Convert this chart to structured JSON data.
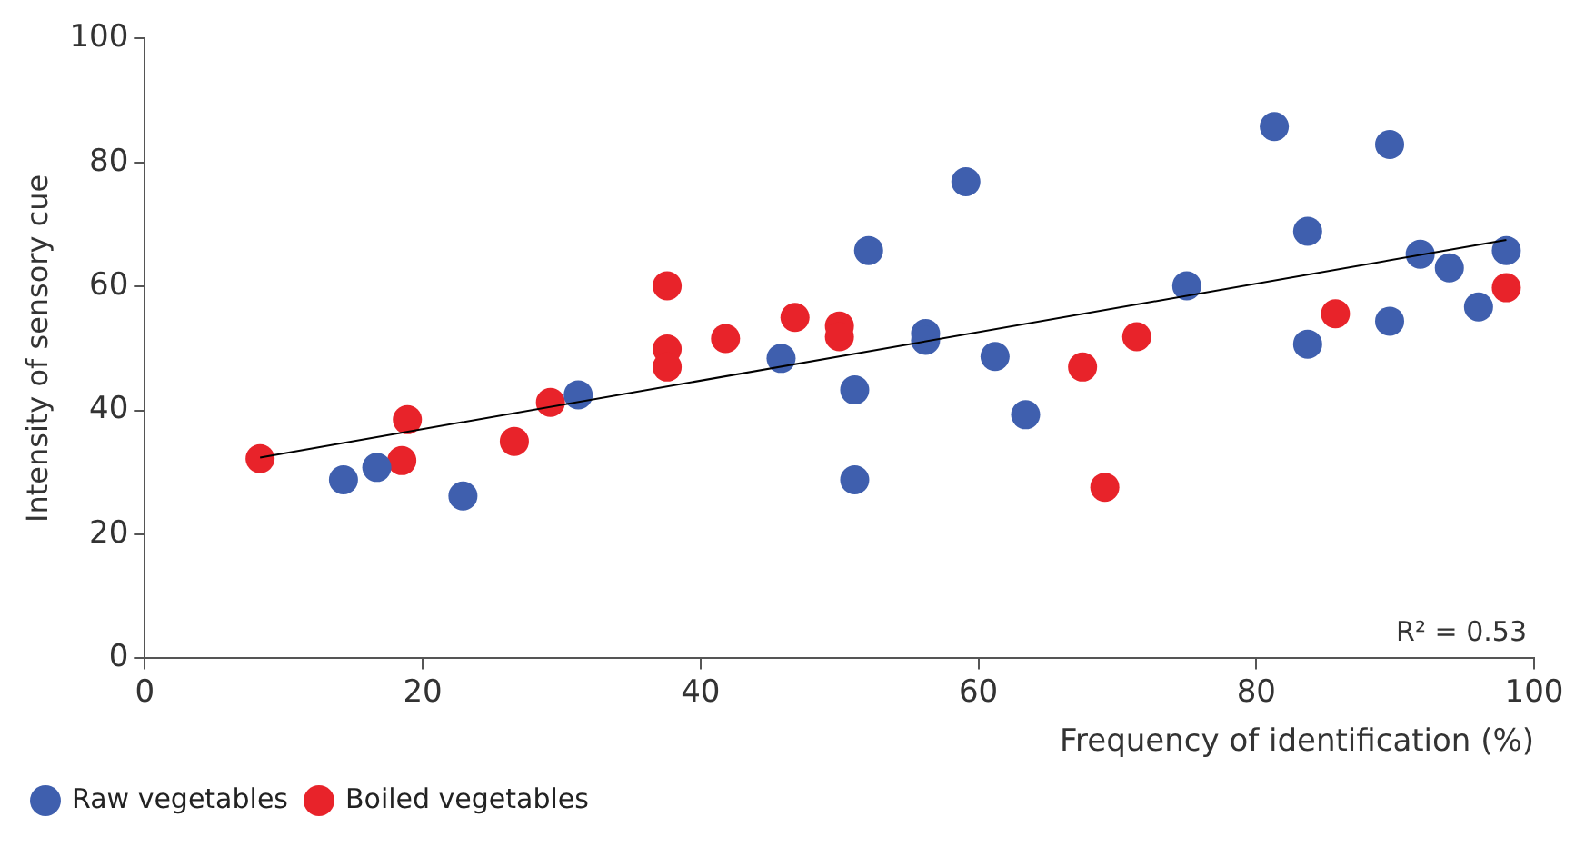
{
  "chart_data": {
    "type": "scatter",
    "xlabel": "Frequency of identification (%)",
    "ylabel": "Intensity of sensory cue",
    "xlim": [
      0,
      100
    ],
    "xticks": [
      0,
      20,
      40,
      60,
      80,
      100
    ],
    "ylim": [
      0,
      100
    ],
    "yticks": [
      0,
      20,
      40,
      60,
      80,
      100
    ],
    "grid": false,
    "legend": "bottom left",
    "marker": "circle",
    "annotations": [
      "R² = 0.53"
    ],
    "series": [
      {
        "name": "Raw vegetables",
        "color": "#3f5fae",
        "x": [
          14.3,
          16.7,
          22.9,
          31.2,
          45.8,
          51.1,
          51.1,
          52.1,
          56.2,
          56.2,
          59.1,
          61.2,
          63.4,
          75.0,
          81.3,
          83.7,
          83.7,
          89.6,
          89.6,
          91.8,
          93.9,
          96.0,
          98.0
        ],
        "values": [
          28.8,
          30.8,
          26.2,
          42.5,
          48.4,
          43.3,
          28.8,
          65.8,
          52.4,
          51.3,
          76.9,
          48.7,
          39.3,
          60.1,
          85.8,
          68.9,
          50.7,
          82.9,
          54.4,
          65.2,
          63.0,
          56.7,
          65.8
        ]
      },
      {
        "name": "Boiled vegetables",
        "color": "#e8232a",
        "x": [
          8.3,
          18.5,
          18.9,
          26.6,
          29.2,
          37.6,
          37.6,
          37.6,
          41.8,
          46.8,
          50.0,
          50.0,
          67.5,
          69.1,
          71.4,
          85.7,
          98.0
        ],
        "values": [
          32.2,
          31.9,
          38.5,
          35.0,
          41.3,
          60.1,
          49.9,
          47.0,
          51.6,
          55.0,
          53.6,
          51.9,
          47.0,
          27.6,
          51.9,
          55.6,
          59.8
        ]
      },
      {
        "type": "line",
        "color": "#000000",
        "marker": "none",
        "x": [
          8.3,
          98.0
        ],
        "values": [
          32.4,
          67.5
        ]
      }
    ]
  }
}
